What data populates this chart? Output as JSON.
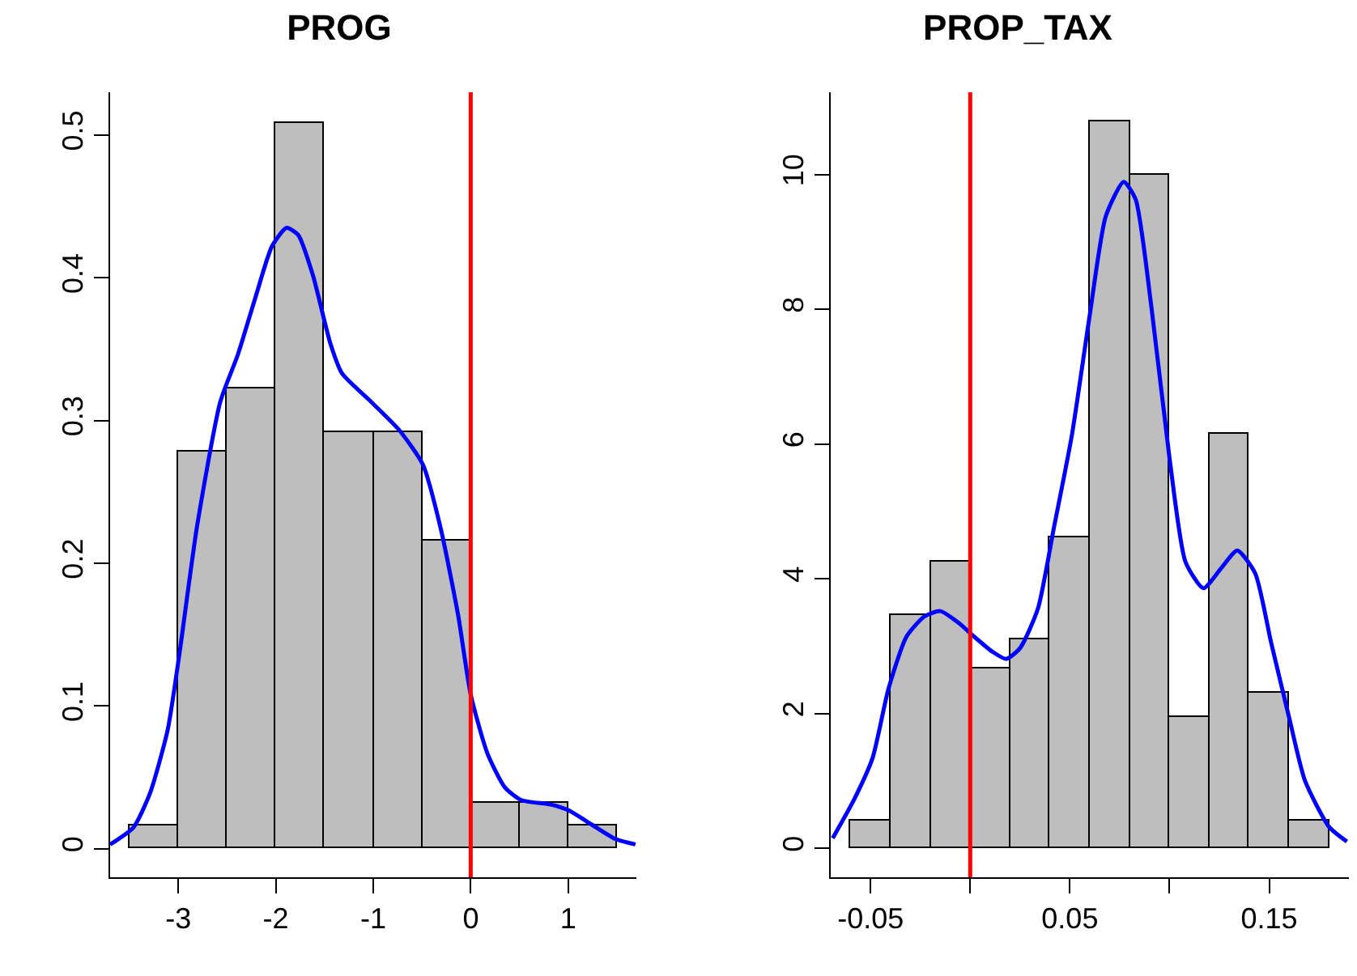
{
  "chart_data": [
    {
      "type": "histogram",
      "title": "PROG",
      "color": "#bebebe",
      "bins": [
        -3.5,
        -3,
        -2.5,
        -2,
        -1.5,
        -1,
        -0.5,
        0,
        0.5,
        1,
        1.5
      ],
      "values": [
        0.016,
        0.278,
        0.323,
        0.509,
        0.292,
        0.292,
        0.216,
        0.032,
        0.032,
        0.016
      ],
      "series": [
        {
          "type": "line",
          "color": "#0000ff",
          "x": [
            -3.7,
            -3.46,
            -3.29,
            -3.11,
            -2.99,
            -2.81,
            -2.57,
            -2.39,
            -2.21,
            -2.04,
            -1.89,
            -1.77,
            -1.62,
            -1.44,
            -1.32,
            -1.02,
            -0.73,
            -0.49,
            -0.31,
            -0.13,
            0,
            0.17,
            0.35,
            0.52,
            0.82,
            1.0,
            1.24,
            1.48,
            1.69
          ],
          "values": [
            0.003,
            0.015,
            0.039,
            0.083,
            0.136,
            0.225,
            0.313,
            0.346,
            0.386,
            0.422,
            0.435,
            0.43,
            0.402,
            0.354,
            0.333,
            0.313,
            0.293,
            0.269,
            0.225,
            0.164,
            0.108,
            0.067,
            0.043,
            0.034,
            0.031,
            0.027,
            0.017,
            0.007,
            0.003
          ]
        }
      ],
      "xlim": [
        -3.7,
        1.7
      ],
      "xticks": [
        -3,
        -2,
        -1,
        0,
        1
      ],
      "ylim": [
        -0.02,
        0.53
      ],
      "yticks": [
        0,
        0.1,
        0.2,
        0.3,
        0.4,
        0.5
      ],
      "ref_lines": [
        {
          "axis": "x",
          "value": 0,
          "color": "#ff0000"
        }
      ],
      "grid": false
    },
    {
      "type": "histogram",
      "title": "PROP_TAX",
      "color": "#bebebe",
      "bins": [
        -0.06,
        -0.04,
        -0.02,
        0,
        0.02,
        0.04,
        0.06,
        0.08,
        0.1,
        0.12,
        0.14,
        0.16,
        0.18
      ],
      "values": [
        0.42,
        3.47,
        4.26,
        2.68,
        3.09,
        4.62,
        10.79,
        10.0,
        1.94,
        6.16,
        2.32,
        0.42
      ],
      "series": [
        {
          "type": "line",
          "color": "#0000ff",
          "x": [
            -0.069,
            -0.058,
            -0.049,
            -0.041,
            -0.032,
            -0.023,
            -0.015,
            -0.006,
            0.002,
            0.011,
            0.018,
            0.025,
            0.034,
            0.042,
            0.051,
            0.06,
            0.068,
            0.077,
            0.083,
            0.091,
            0.1,
            0.108,
            0.117,
            0.126,
            0.134,
            0.143,
            0.151,
            0.16,
            0.168,
            0.18,
            0.189
          ],
          "values": [
            0.15,
            0.74,
            1.34,
            2.37,
            3.14,
            3.44,
            3.52,
            3.35,
            3.14,
            2.92,
            2.81,
            2.97,
            3.56,
            4.76,
            6.13,
            7.92,
            9.38,
            9.89,
            9.63,
            8.01,
            5.79,
            4.25,
            3.86,
            4.16,
            4.42,
            4.08,
            3.05,
            1.94,
            1.0,
            0.32,
            0.1
          ]
        }
      ],
      "xlim": [
        -0.07,
        0.19
      ],
      "xticks": [
        -0.05,
        {
          "value": 0,
          "label": null
        },
        0.05,
        {
          "value": 0.1,
          "label": null
        },
        0.15
      ],
      "ylim": [
        -0.43,
        11.22
      ],
      "yticks": [
        0,
        2,
        4,
        6,
        8,
        10
      ],
      "ref_lines": [
        {
          "axis": "x",
          "value": 0,
          "color": "#ff0000"
        }
      ],
      "grid": false
    }
  ]
}
